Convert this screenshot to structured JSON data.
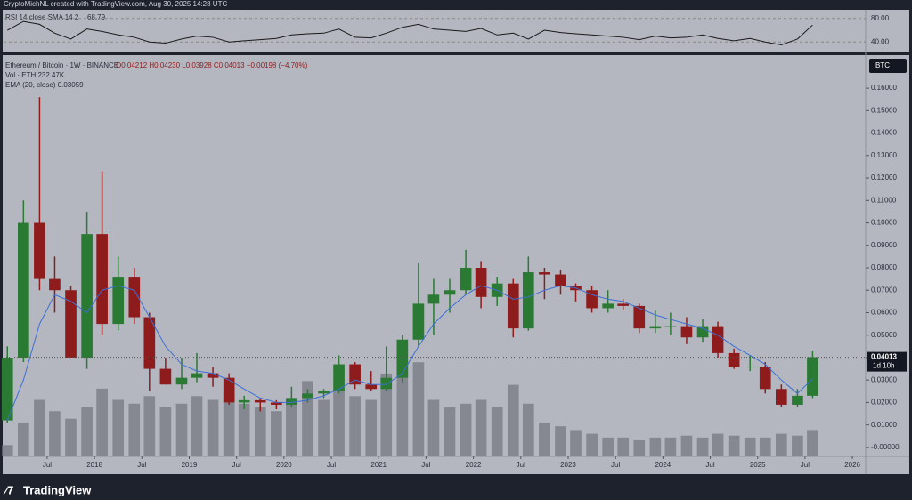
{
  "header": {
    "credit": "CryptoMichNL created with TradingView.com, Aug 30, 2025 14:28 UTC",
    "logo": "TradingView"
  },
  "chart_data": [
    {
      "type": "candlestick",
      "title": "Ethereum / Bitcoin · 1W · BINANCE",
      "ohlc_text": "O0.04212 H0.04230 L0.03928 C0.04013 −0.00198 (−4.70%)",
      "volume_text": "Vol · ETH 232.47K",
      "ema_text": "EMA (20, close) 0.03059",
      "currency": "BTC",
      "price_label": "0.04013",
      "countdown": "1d 10h",
      "up_color": "#2b7a34",
      "down_color": "#8e1c1c",
      "ema_color": "#3d6fd6",
      "volume_color": "#70737d",
      "x": [
        2017.08,
        2017.25,
        2017.42,
        2017.58,
        2017.75,
        2017.92,
        2018.08,
        2018.25,
        2018.42,
        2018.58,
        2018.75,
        2018.92,
        2019.08,
        2019.25,
        2019.42,
        2019.58,
        2019.75,
        2019.92,
        2020.08,
        2020.25,
        2020.42,
        2020.58,
        2020.75,
        2020.92,
        2021.08,
        2021.25,
        2021.42,
        2021.58,
        2021.75,
        2021.92,
        2022.08,
        2022.25,
        2022.42,
        2022.58,
        2022.75,
        2022.92,
        2023.08,
        2023.25,
        2023.42,
        2023.58,
        2023.75,
        2023.92,
        2024.08,
        2024.25,
        2024.42,
        2024.58,
        2024.75,
        2024.92,
        2025.08,
        2025.25,
        2025.42,
        2025.58
      ],
      "open": [
        0.012,
        0.04,
        0.1,
        0.075,
        0.07,
        0.04,
        0.095,
        0.055,
        0.076,
        0.058,
        0.035,
        0.028,
        0.031,
        0.033,
        0.031,
        0.02,
        0.021,
        0.02,
        0.019,
        0.022,
        0.024,
        0.025,
        0.037,
        0.028,
        0.026,
        0.031,
        0.048,
        0.064,
        0.068,
        0.07,
        0.08,
        0.067,
        0.073,
        0.053,
        0.078,
        0.077,
        0.072,
        0.07,
        0.062,
        0.064,
        0.063,
        0.053,
        0.054,
        0.054,
        0.049,
        0.054,
        0.042,
        0.036,
        0.036,
        0.026,
        0.019,
        0.023
      ],
      "high": [
        0.045,
        0.11,
        0.156,
        0.085,
        0.072,
        0.105,
        0.123,
        0.085,
        0.08,
        0.06,
        0.04,
        0.04,
        0.042,
        0.036,
        0.033,
        0.023,
        0.022,
        0.021,
        0.027,
        0.026,
        0.026,
        0.041,
        0.038,
        0.034,
        0.045,
        0.05,
        0.082,
        0.075,
        0.075,
        0.088,
        0.083,
        0.076,
        0.075,
        0.085,
        0.08,
        0.079,
        0.073,
        0.072,
        0.07,
        0.066,
        0.064,
        0.061,
        0.06,
        0.058,
        0.057,
        0.056,
        0.044,
        0.041,
        0.038,
        0.028,
        0.026,
        0.043
      ],
      "low": [
        0.011,
        0.038,
        0.07,
        0.06,
        0.04,
        0.035,
        0.05,
        0.052,
        0.055,
        0.025,
        0.028,
        0.026,
        0.029,
        0.027,
        0.019,
        0.017,
        0.016,
        0.017,
        0.018,
        0.02,
        0.022,
        0.024,
        0.026,
        0.025,
        0.025,
        0.029,
        0.045,
        0.05,
        0.06,
        0.068,
        0.062,
        0.063,
        0.049,
        0.052,
        0.066,
        0.068,
        0.065,
        0.06,
        0.06,
        0.061,
        0.051,
        0.051,
        0.05,
        0.046,
        0.047,
        0.04,
        0.035,
        0.034,
        0.024,
        0.018,
        0.018,
        0.022
      ],
      "close": [
        0.04,
        0.1,
        0.075,
        0.07,
        0.04,
        0.095,
        0.055,
        0.076,
        0.058,
        0.035,
        0.028,
        0.031,
        0.033,
        0.031,
        0.02,
        0.021,
        0.02,
        0.019,
        0.022,
        0.024,
        0.025,
        0.037,
        0.028,
        0.026,
        0.031,
        0.048,
        0.064,
        0.068,
        0.07,
        0.08,
        0.067,
        0.073,
        0.053,
        0.078,
        0.077,
        0.072,
        0.07,
        0.062,
        0.064,
        0.063,
        0.053,
        0.054,
        0.054,
        0.049,
        0.054,
        0.042,
        0.036,
        0.036,
        0.026,
        0.019,
        0.023,
        0.04013
      ],
      "ema": [
        0.012,
        0.03,
        0.055,
        0.068,
        0.065,
        0.06,
        0.07,
        0.072,
        0.07,
        0.058,
        0.045,
        0.037,
        0.034,
        0.033,
        0.03,
        0.026,
        0.022,
        0.02,
        0.02,
        0.021,
        0.023,
        0.026,
        0.03,
        0.028,
        0.028,
        0.033,
        0.045,
        0.055,
        0.062,
        0.068,
        0.072,
        0.07,
        0.066,
        0.067,
        0.07,
        0.072,
        0.071,
        0.068,
        0.066,
        0.065,
        0.062,
        0.059,
        0.057,
        0.055,
        0.053,
        0.05,
        0.045,
        0.041,
        0.037,
        0.03,
        0.024,
        0.03059
      ],
      "volume": [
        300,
        900,
        1500,
        1200,
        1000,
        1300,
        1800,
        1500,
        1400,
        1600,
        1300,
        1400,
        1600,
        1500,
        1700,
        1400,
        1300,
        1200,
        1400,
        2000,
        1500,
        1800,
        1600,
        1500,
        2200,
        2600,
        2500,
        1500,
        1300,
        1400,
        1500,
        1300,
        1900,
        1400,
        900,
        800,
        700,
        600,
        500,
        500,
        450,
        500,
        500,
        550,
        500,
        600,
        550,
        500,
        500,
        600,
        550,
        700
      ],
      "xlim": [
        2017.04,
        2026.14
      ],
      "ylim": [
        -0.004,
        0.1743
      ],
      "yticks": [
        {
          "value": 0.16,
          "label": "0.16000"
        },
        {
          "value": 0.15,
          "label": "0.15000"
        },
        {
          "value": 0.14,
          "label": "0.14000"
        },
        {
          "value": 0.13,
          "label": "0.13000"
        },
        {
          "value": 0.12,
          "label": "0.12000"
        },
        {
          "value": 0.11,
          "label": "0.11000"
        },
        {
          "value": 0.1,
          "label": "0.10000"
        },
        {
          "value": 0.09,
          "label": "0.09000"
        },
        {
          "value": 0.08,
          "label": "0.08000"
        },
        {
          "value": 0.07,
          "label": "0.07000"
        },
        {
          "value": 0.06,
          "label": "0.06000"
        },
        {
          "value": 0.05,
          "label": "0.05000"
        },
        {
          "value": 0.04,
          "label": "0.04000"
        },
        {
          "value": 0.03,
          "label": "0.03000"
        },
        {
          "value": 0.02,
          "label": "0.02000"
        },
        {
          "value": 0.01,
          "label": "0.01000"
        },
        {
          "value": 0,
          "label": "-0.00000"
        }
      ],
      "xticks": [
        {
          "value": 2017.5,
          "label": "Jul"
        },
        2018,
        {
          "value": 2018.5,
          "label": "Jul"
        },
        2019,
        {
          "value": 2019.5,
          "label": "Jul"
        },
        2020,
        {
          "value": 2020.5,
          "label": "Jul"
        },
        2021,
        {
          "value": 2021.5,
          "label": "Jul"
        },
        2022,
        {
          "value": 2022.5,
          "label": "Jul"
        },
        2023,
        {
          "value": 2023.5,
          "label": "Jul"
        },
        2024,
        {
          "value": 2024.5,
          "label": "Jul"
        },
        2025,
        {
          "value": 2025.5,
          "label": "Jul"
        },
        2026
      ]
    },
    {
      "type": "line",
      "title": "RSI 14 close SMA 14 2",
      "value_text": "68.79",
      "color": "#1a1a1a",
      "x": [
        2017.08,
        2017.25,
        2017.42,
        2017.58,
        2017.75,
        2017.92,
        2018.08,
        2018.25,
        2018.42,
        2018.58,
        2018.75,
        2018.92,
        2019.08,
        2019.25,
        2019.42,
        2019.58,
        2019.75,
        2019.92,
        2020.08,
        2020.25,
        2020.42,
        2020.58,
        2020.75,
        2020.92,
        2021.08,
        2021.25,
        2021.42,
        2021.58,
        2021.75,
        2021.92,
        2022.08,
        2022.25,
        2022.42,
        2022.58,
        2022.75,
        2022.92,
        2023.08,
        2023.25,
        2023.42,
        2023.58,
        2023.75,
        2023.92,
        2024.08,
        2024.25,
        2024.42,
        2024.58,
        2024.75,
        2024.92,
        2025.08,
        2025.25,
        2025.42,
        2025.58
      ],
      "values": [
        60,
        75,
        70,
        55,
        45,
        62,
        58,
        52,
        48,
        40,
        38,
        45,
        50,
        48,
        40,
        42,
        44,
        46,
        52,
        54,
        55,
        62,
        48,
        47,
        55,
        65,
        70,
        62,
        60,
        58,
        63,
        52,
        55,
        45,
        60,
        56,
        54,
        52,
        50,
        48,
        44,
        50,
        47,
        48,
        52,
        46,
        42,
        46,
        40,
        35,
        45,
        68.79
      ],
      "xlim": [
        2017.04,
        2026.14
      ],
      "ylim": [
        23.7,
        94.8
      ],
      "yticks": [
        {
          "value": 80,
          "label": "80.00"
        },
        {
          "value": 40,
          "label": "40.00"
        }
      ]
    }
  ]
}
